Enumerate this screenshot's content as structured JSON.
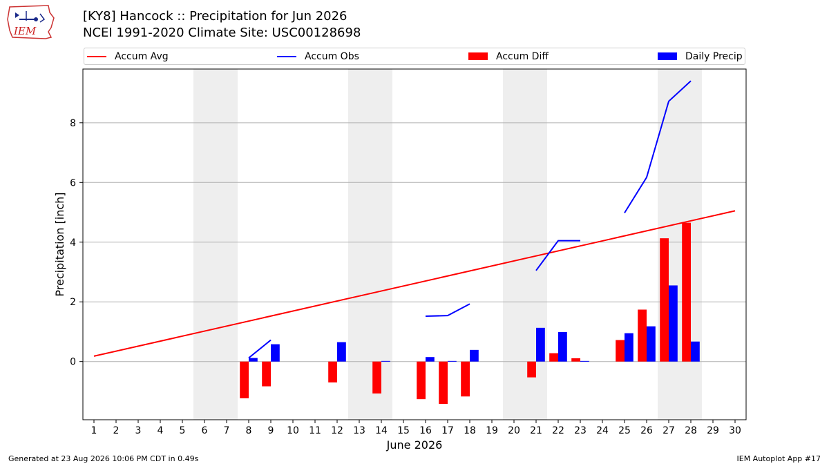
{
  "header": {
    "logo_text": "IEM",
    "title": "[KY8] Hancock :: Precipitation for Jun 2026",
    "subtitle": "NCEI 1991-2020 Climate Site: USC00128698"
  },
  "legend": {
    "accum_avg": "Accum Avg",
    "accum_obs": "Accum Obs",
    "accum_diff": "Accum Diff",
    "daily_precip": "Daily Precip"
  },
  "colors": {
    "accum_avg": "#ff0000",
    "accum_obs": "#0000ff",
    "accum_diff": "#ff0000",
    "daily_precip": "#0000ff",
    "weekend_shade": "#eeeeee",
    "grid": "#b0b0b0"
  },
  "footer": {
    "generated": "Generated at 23 Aug 2026 10:06 PM CDT in 0.49s",
    "app": "IEM Autoplot App #17"
  },
  "chart_data": {
    "type": "bar",
    "xlabel": "June 2026",
    "ylabel": "Precipitation [inch]",
    "xlim": [
      0.5,
      30.5
    ],
    "ylim": [
      -1.95,
      9.8
    ],
    "x_ticks": [
      1,
      2,
      3,
      4,
      5,
      6,
      7,
      8,
      9,
      10,
      11,
      12,
      13,
      14,
      15,
      16,
      17,
      18,
      19,
      20,
      21,
      22,
      23,
      24,
      25,
      26,
      27,
      28,
      29,
      30
    ],
    "y_ticks": [
      0,
      2,
      4,
      6,
      8
    ],
    "grid": "horizontal",
    "legend_position": "top",
    "weekend_bands": [
      [
        5.5,
        7.5
      ],
      [
        12.5,
        14.5
      ],
      [
        19.5,
        21.5
      ],
      [
        26.5,
        28.5
      ]
    ],
    "series": [
      {
        "name": "Accum Avg",
        "kind": "line",
        "x": [
          1,
          30
        ],
        "values": [
          0.18,
          5.05
        ]
      },
      {
        "name": "Accum Obs",
        "kind": "line",
        "segments": [
          {
            "x": [
              8,
              9
            ],
            "values": [
              0.12,
              0.72
            ]
          },
          {
            "x": [
              16,
              17,
              18
            ],
            "values": [
              1.52,
              1.54,
              1.93
            ]
          },
          {
            "x": [
              21,
              22,
              23
            ],
            "values": [
              3.05,
              4.05,
              4.05
            ]
          },
          {
            "x": [
              25,
              26,
              27,
              28
            ],
            "values": [
              4.98,
              6.17,
              8.72,
              9.4
            ]
          }
        ]
      },
      {
        "name": "Accum Diff",
        "kind": "bar",
        "x": [
          8,
          9,
          12,
          14,
          16,
          17,
          18,
          21,
          22,
          23,
          25,
          26,
          27,
          28
        ],
        "values": [
          -1.23,
          -0.83,
          -0.7,
          -1.07,
          -1.26,
          -1.42,
          -1.17,
          -0.53,
          0.28,
          0.11,
          0.72,
          1.74,
          4.13,
          4.65
        ]
      },
      {
        "name": "Daily Precip",
        "kind": "bar",
        "x": [
          8,
          9,
          12,
          14,
          16,
          17,
          18,
          21,
          22,
          23,
          25,
          26,
          27,
          28
        ],
        "values": [
          0.12,
          0.58,
          0.65,
          0.02,
          0.15,
          0.02,
          0.39,
          1.13,
          0.99,
          0.02,
          0.95,
          1.18,
          2.55,
          0.67
        ]
      }
    ]
  }
}
